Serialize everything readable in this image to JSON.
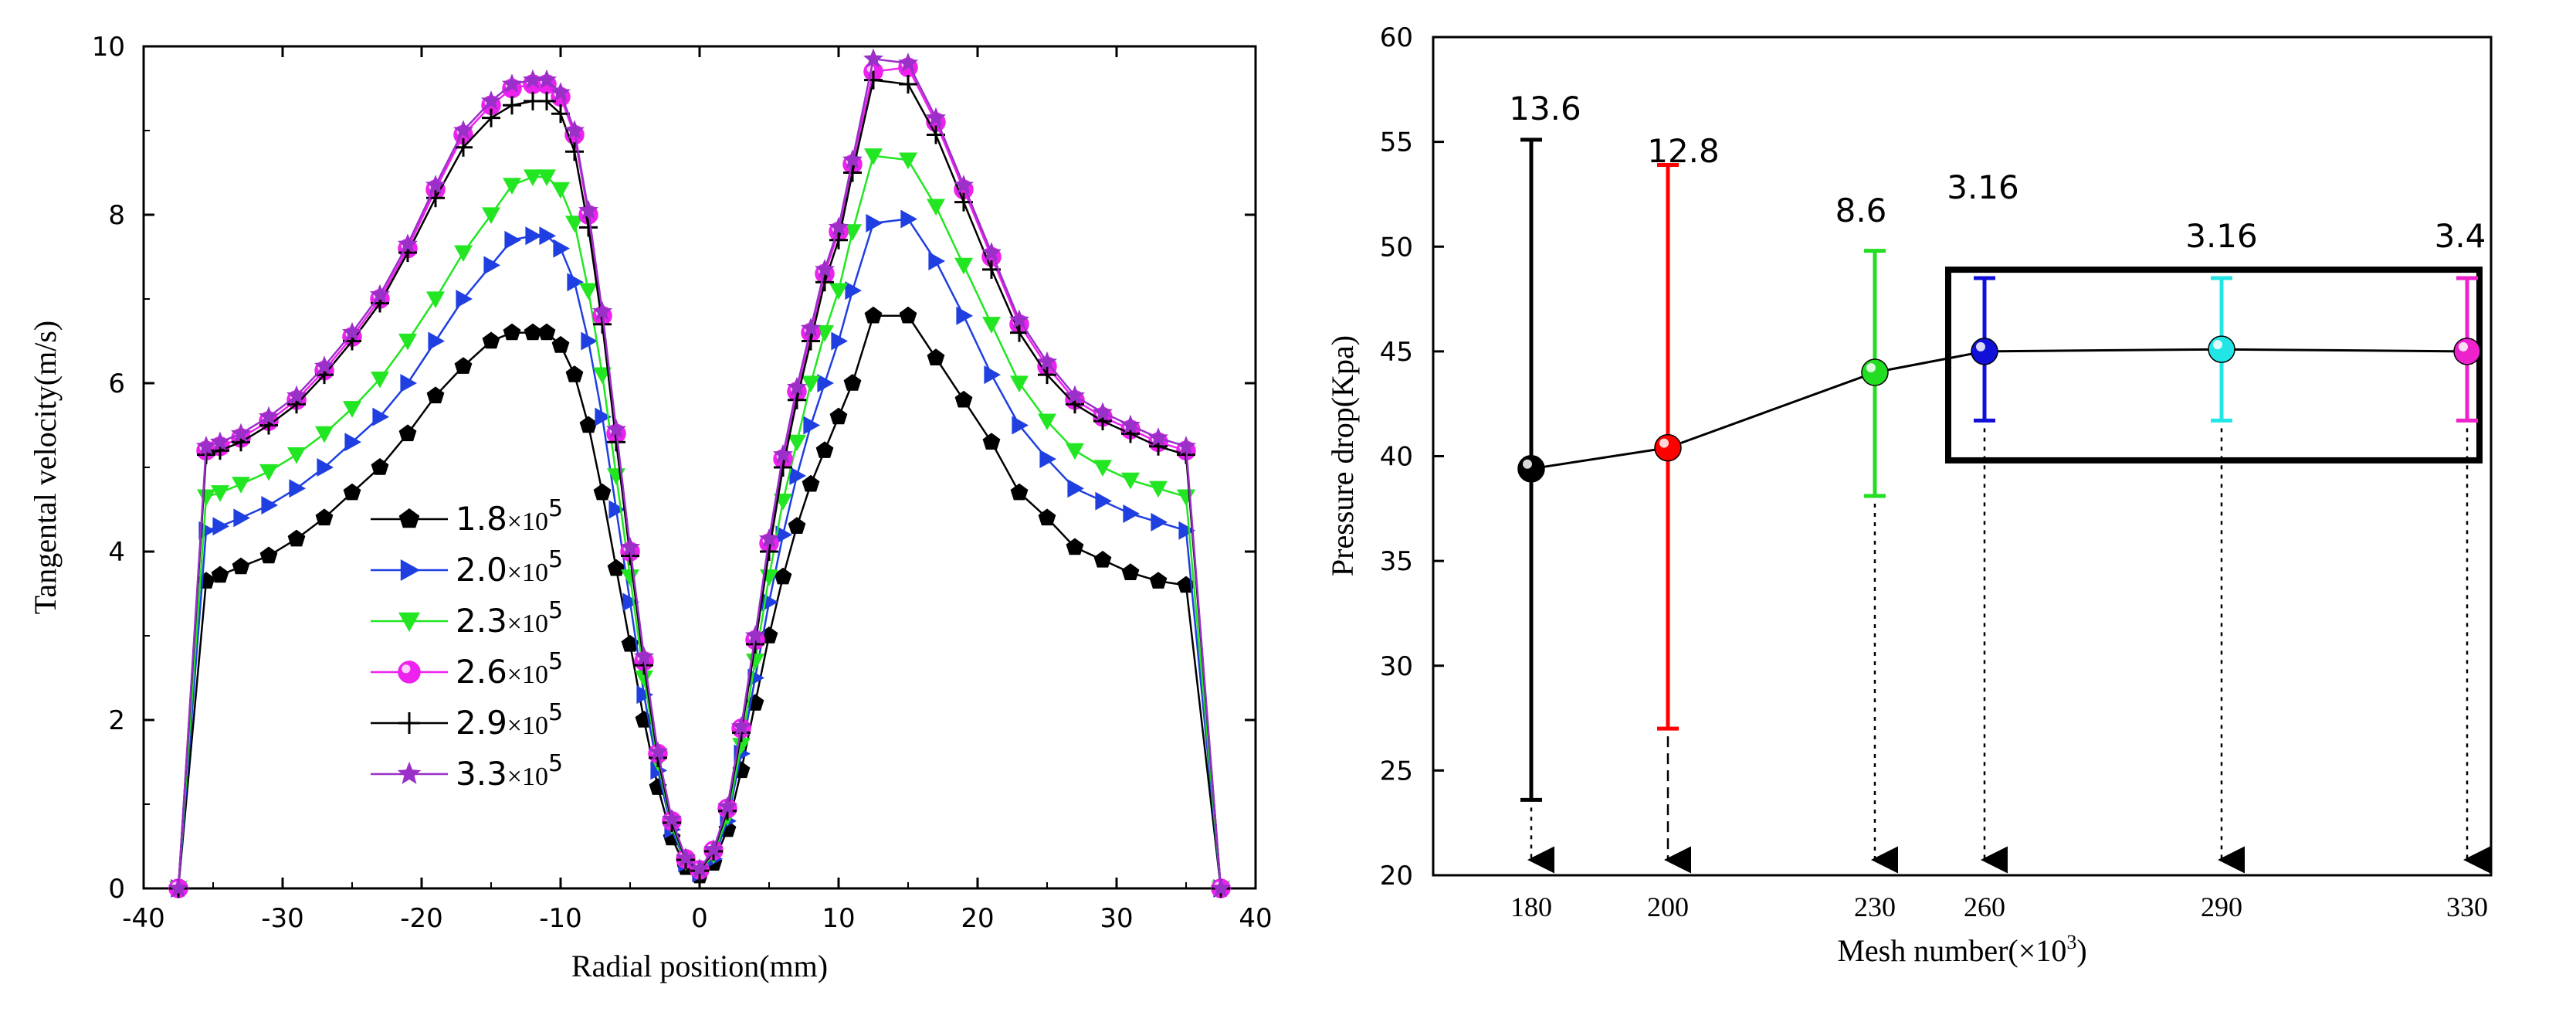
{
  "chart_data": [
    {
      "type": "line",
      "title": "",
      "xlabel": "Radial position(mm)",
      "ylabel": "Tangental velocity(m/s)",
      "xlim": [
        -40,
        40
      ],
      "ylim": [
        0,
        10
      ],
      "xticks": [
        -40,
        -30,
        -20,
        -10,
        0,
        10,
        20,
        30,
        40
      ],
      "yticks": [
        0,
        2,
        4,
        6,
        8,
        10
      ],
      "legend_position": "lower-left",
      "series": [
        {
          "name": "1.8×10^5",
          "label_main": "1.8",
          "label_sci": "×10",
          "label_exp": "5",
          "color": "#000000",
          "marker": "pentagon",
          "x": [
            -37.5,
            -35.5,
            -34.5,
            -33,
            -31,
            -29,
            -27,
            -25,
            -23,
            -21,
            -19,
            -17,
            -15,
            -13.5,
            -12,
            -11,
            -10,
            -9,
            -8,
            -7,
            -6,
            -5,
            -4,
            -3,
            -2,
            -1,
            0,
            1,
            2,
            3,
            4,
            5,
            6,
            7,
            8,
            9,
            10,
            11,
            12.5,
            15,
            17,
            19,
            21,
            23,
            25,
            27,
            29,
            31,
            33,
            35,
            37.5
          ],
          "y": [
            0,
            3.65,
            3.72,
            3.82,
            3.95,
            4.15,
            4.4,
            4.7,
            5.0,
            5.4,
            5.85,
            6.2,
            6.5,
            6.6,
            6.6,
            6.6,
            6.45,
            6.1,
            5.5,
            4.7,
            3.8,
            2.9,
            2.0,
            1.2,
            0.6,
            0.25,
            0.15,
            0.3,
            0.7,
            1.4,
            2.2,
            3.0,
            3.7,
            4.3,
            4.8,
            5.2,
            5.6,
            6.0,
            6.8,
            6.8,
            6.3,
            5.8,
            5.3,
            4.7,
            4.4,
            4.05,
            3.9,
            3.75,
            3.65,
            3.6,
            0
          ]
        },
        {
          "name": "2.0×10^5",
          "label_main": "2.0",
          "label_sci": "×10",
          "label_exp": "5",
          "color": "#1f3fe0",
          "marker": "triangle-right",
          "x": [
            -37.5,
            -35.5,
            -34.5,
            -33,
            -31,
            -29,
            -27,
            -25,
            -23,
            -21,
            -19,
            -17,
            -15,
            -13.5,
            -12,
            -11,
            -10,
            -9,
            -8,
            -7,
            -6,
            -5,
            -4,
            -3,
            -2,
            -1,
            0,
            1,
            2,
            3,
            4,
            5,
            6,
            7,
            8,
            9,
            10,
            11,
            12.5,
            15,
            17,
            19,
            21,
            23,
            25,
            27,
            29,
            31,
            33,
            35,
            37.5
          ],
          "y": [
            0,
            4.25,
            4.3,
            4.4,
            4.55,
            4.75,
            5.0,
            5.3,
            5.6,
            6.0,
            6.5,
            7.0,
            7.4,
            7.7,
            7.75,
            7.75,
            7.6,
            7.2,
            6.5,
            5.6,
            4.5,
            3.4,
            2.3,
            1.4,
            0.7,
            0.3,
            0.18,
            0.35,
            0.8,
            1.6,
            2.5,
            3.4,
            4.2,
            4.9,
            5.5,
            6.0,
            6.5,
            7.1,
            7.9,
            7.95,
            7.45,
            6.8,
            6.1,
            5.5,
            5.1,
            4.75,
            4.6,
            4.45,
            4.35,
            4.25,
            0
          ]
        },
        {
          "name": "2.3×10^5",
          "label_main": "2.3",
          "label_sci": "×10",
          "label_exp": "5",
          "color": "#22e622",
          "marker": "triangle-down",
          "x": [
            -37.5,
            -35.5,
            -34.5,
            -33,
            -31,
            -29,
            -27,
            -25,
            -23,
            -21,
            -19,
            -17,
            -15,
            -13.5,
            -12,
            -11,
            -10,
            -9,
            -8,
            -7,
            -6,
            -5,
            -4,
            -3,
            -2,
            -1,
            0,
            1,
            2,
            3,
            4,
            5,
            6,
            7,
            8,
            9,
            10,
            11,
            12.5,
            15,
            17,
            19,
            21,
            23,
            25,
            27,
            29,
            31,
            33,
            35,
            37.5
          ],
          "y": [
            0,
            4.65,
            4.7,
            4.8,
            4.95,
            5.15,
            5.4,
            5.7,
            6.05,
            6.5,
            7.0,
            7.55,
            8.0,
            8.35,
            8.45,
            8.45,
            8.3,
            7.9,
            7.1,
            6.1,
            4.9,
            3.7,
            2.5,
            1.5,
            0.75,
            0.32,
            0.2,
            0.4,
            0.85,
            1.7,
            2.7,
            3.7,
            4.6,
            5.3,
            6.0,
            6.6,
            7.1,
            7.8,
            8.7,
            8.65,
            8.1,
            7.4,
            6.7,
            6.0,
            5.55,
            5.2,
            5.0,
            4.85,
            4.75,
            4.65,
            0
          ]
        },
        {
          "name": "2.6×10^5",
          "label_main": "2.6",
          "label_sci": "×10",
          "label_exp": "5",
          "color": "#ee22ee",
          "marker": "sphere",
          "x": [
            -37.5,
            -35.5,
            -34.5,
            -33,
            -31,
            -29,
            -27,
            -25,
            -23,
            -21,
            -19,
            -17,
            -15,
            -13.5,
            -12,
            -11,
            -10,
            -9,
            -8,
            -7,
            -6,
            -5,
            -4,
            -3,
            -2,
            -1,
            0,
            1,
            2,
            3,
            4,
            5,
            6,
            7,
            8,
            9,
            10,
            11,
            12.5,
            15,
            17,
            19,
            21,
            23,
            25,
            27,
            29,
            31,
            33,
            35,
            37.5
          ],
          "y": [
            0,
            5.2,
            5.25,
            5.35,
            5.55,
            5.8,
            6.15,
            6.55,
            7.0,
            7.6,
            8.3,
            8.95,
            9.3,
            9.5,
            9.55,
            9.55,
            9.4,
            8.95,
            8.0,
            6.8,
            5.4,
            4.0,
            2.7,
            1.6,
            0.8,
            0.35,
            0.22,
            0.45,
            0.95,
            1.9,
            2.95,
            4.1,
            5.1,
            5.9,
            6.6,
            7.3,
            7.8,
            8.6,
            9.7,
            9.75,
            9.1,
            8.3,
            7.5,
            6.7,
            6.2,
            5.8,
            5.6,
            5.45,
            5.3,
            5.2,
            0
          ]
        },
        {
          "name": "2.9×10^5",
          "label_main": "2.9",
          "label_sci": "×10",
          "label_exp": "5",
          "color": "#000000",
          "marker": "plus",
          "x": [
            -37.5,
            -35.5,
            -34.5,
            -33,
            -31,
            -29,
            -27,
            -25,
            -23,
            -21,
            -19,
            -17,
            -15,
            -13.5,
            -12,
            -11,
            -10,
            -9,
            -8,
            -7,
            -6,
            -5,
            -4,
            -3,
            -2,
            -1,
            0,
            1,
            2,
            3,
            4,
            5,
            6,
            7,
            8,
            9,
            10,
            11,
            12.5,
            15,
            17,
            19,
            21,
            23,
            25,
            27,
            29,
            31,
            33,
            35,
            37.5
          ],
          "y": [
            0,
            5.15,
            5.2,
            5.3,
            5.5,
            5.75,
            6.1,
            6.5,
            6.95,
            7.55,
            8.2,
            8.8,
            9.15,
            9.3,
            9.35,
            9.35,
            9.2,
            8.75,
            7.85,
            6.7,
            5.3,
            3.95,
            2.65,
            1.55,
            0.78,
            0.34,
            0.21,
            0.44,
            0.92,
            1.85,
            2.9,
            4.0,
            5.0,
            5.8,
            6.5,
            7.2,
            7.7,
            8.5,
            9.6,
            9.55,
            8.95,
            8.15,
            7.35,
            6.6,
            6.1,
            5.75,
            5.55,
            5.4,
            5.25,
            5.15,
            0
          ]
        },
        {
          "name": "3.3×10^5",
          "label_main": "3.3",
          "label_sci": "×10",
          "label_exp": "5",
          "color": "#9a30c8",
          "marker": "star",
          "x": [
            -37.5,
            -35.5,
            -34.5,
            -33,
            -31,
            -29,
            -27,
            -25,
            -23,
            -21,
            -19,
            -17,
            -15,
            -13.5,
            -12,
            -11,
            -10,
            -9,
            -8,
            -7,
            -6,
            -5,
            -4,
            -3,
            -2,
            -1,
            0,
            1,
            2,
            3,
            4,
            5,
            6,
            7,
            8,
            9,
            10,
            11,
            12.5,
            15,
            17,
            19,
            21,
            23,
            25,
            27,
            29,
            31,
            33,
            35,
            37.5
          ],
          "y": [
            0,
            5.25,
            5.3,
            5.4,
            5.6,
            5.85,
            6.2,
            6.6,
            7.05,
            7.65,
            8.35,
            9.0,
            9.35,
            9.55,
            9.6,
            9.6,
            9.45,
            9.0,
            8.05,
            6.85,
            5.45,
            4.05,
            2.75,
            1.62,
            0.82,
            0.36,
            0.23,
            0.46,
            0.97,
            1.92,
            3.0,
            4.15,
            5.15,
            5.95,
            6.65,
            7.35,
            7.85,
            8.65,
            9.85,
            9.8,
            9.15,
            8.35,
            7.55,
            6.75,
            6.25,
            5.85,
            5.65,
            5.5,
            5.35,
            5.25,
            0
          ]
        }
      ]
    },
    {
      "type": "scatter",
      "subtype": "errorbar",
      "title": "",
      "xlabel": "Mesh number(×10",
      "xlabel_exp": "3",
      "xlabel_close": ")",
      "ylabel": "Pressure drop(Kpa)",
      "ylim": [
        20,
        60
      ],
      "yticks": [
        20,
        25,
        30,
        35,
        40,
        45,
        50,
        55,
        60
      ],
      "categories": [
        "180",
        "200",
        "230",
        "260",
        "290",
        "330"
      ],
      "values": [
        39.4,
        40.4,
        44.0,
        45.0,
        45.1,
        45.0
      ],
      "err_low": [
        23.6,
        27.0,
        38.1,
        41.7,
        41.7,
        41.7
      ],
      "err_high": [
        55.1,
        53.9,
        49.8,
        48.5,
        48.5,
        48.5
      ],
      "labels": [
        "13.6",
        "12.8",
        "8.6",
        "3.16",
        "3.16",
        "3.4"
      ],
      "colors": [
        "#000000",
        "#ff0000",
        "#22dd22",
        "#1010d8",
        "#22e6e6",
        "#ee22cc"
      ],
      "highlight_box": "categories 260–330"
    }
  ]
}
